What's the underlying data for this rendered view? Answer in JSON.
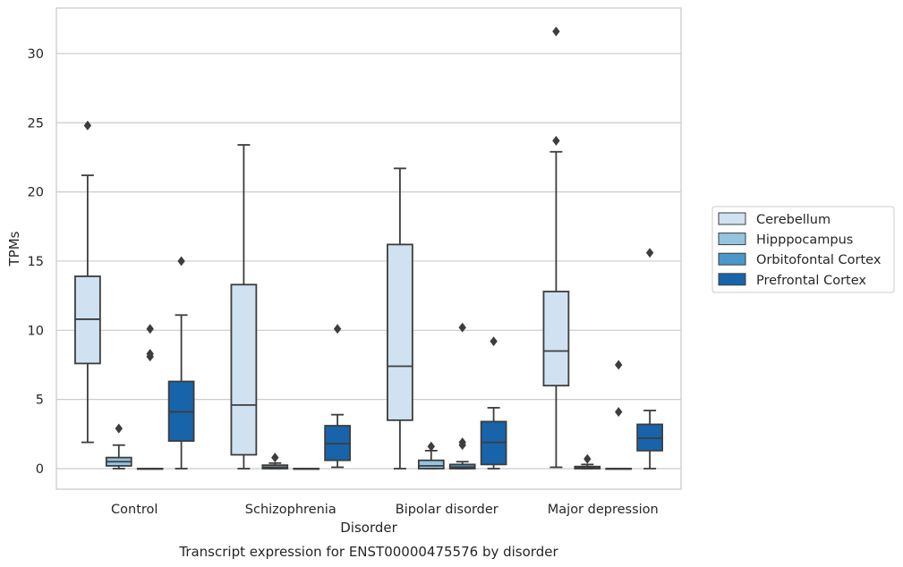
{
  "chart_data": {
    "type": "box",
    "title": "",
    "xlabel": "Disorder",
    "ylabel": "TPMs",
    "caption": "Transcript expression for ENST00000475576 by disorder",
    "categories": [
      "Control",
      "Schizophrenia",
      "Bipolar disorder",
      "Major depression"
    ],
    "ylim": [
      -1.5,
      32.5
    ],
    "yticks": [
      0,
      5,
      10,
      15,
      20,
      25,
      30
    ],
    "grid": "horizontal",
    "legend_position": "center-right",
    "colors": [
      "#d0e1f2",
      "#94c4df",
      "#4a98c9",
      "#1764ab"
    ],
    "edge_color": "#3d3d3d",
    "series": [
      {
        "name": "Cerebellum",
        "boxes": [
          {
            "q1": 7.6,
            "median": 10.8,
            "q3": 13.9,
            "whislo": 1.9,
            "whishi": 21.2,
            "fliers": [
              24.8
            ]
          },
          {
            "q1": 1.0,
            "median": 4.6,
            "q3": 13.3,
            "whislo": 0.0,
            "whishi": 23.4,
            "fliers": []
          },
          {
            "q1": 3.5,
            "median": 7.4,
            "q3": 16.2,
            "whislo": 0.0,
            "whishi": 21.7,
            "fliers": []
          },
          {
            "q1": 6.0,
            "median": 8.5,
            "q3": 12.8,
            "whislo": 0.1,
            "whishi": 22.9,
            "fliers": [
              23.7,
              31.6
            ]
          }
        ]
      },
      {
        "name": "Hipppocampus",
        "boxes": [
          {
            "q1": 0.2,
            "median": 0.5,
            "q3": 0.8,
            "whislo": 0.0,
            "whishi": 1.7,
            "fliers": [
              2.9
            ]
          },
          {
            "q1": 0.0,
            "median": 0.1,
            "q3": 0.25,
            "whislo": 0.0,
            "whishi": 0.4,
            "fliers": [
              0.8
            ]
          },
          {
            "q1": 0.0,
            "median": 0.2,
            "q3": 0.6,
            "whislo": 0.0,
            "whishi": 1.3,
            "fliers": [
              1.6
            ]
          },
          {
            "q1": 0.0,
            "median": 0.05,
            "q3": 0.15,
            "whislo": 0.0,
            "whishi": 0.3,
            "fliers": [
              0.7
            ]
          }
        ]
      },
      {
        "name": "Orbitofontal Cortex",
        "boxes": [
          {
            "q1": 0.0,
            "median": 0.0,
            "q3": 0.0,
            "whislo": 0.0,
            "whishi": 0.0,
            "fliers": [
              8.1,
              8.3,
              10.1
            ]
          },
          {
            "q1": 0.0,
            "median": 0.0,
            "q3": 0.0,
            "whislo": 0.0,
            "whishi": 0.0,
            "fliers": []
          },
          {
            "q1": 0.0,
            "median": 0.1,
            "q3": 0.3,
            "whislo": 0.0,
            "whishi": 0.5,
            "fliers": [
              1.7,
              1.9,
              10.2
            ]
          },
          {
            "q1": 0.0,
            "median": 0.0,
            "q3": 0.0,
            "whislo": 0.0,
            "whishi": 0.0,
            "fliers": [
              4.1,
              7.5
            ]
          }
        ]
      },
      {
        "name": "Prefrontal Cortex",
        "boxes": [
          {
            "q1": 2.0,
            "median": 4.1,
            "q3": 6.3,
            "whislo": 0.0,
            "whishi": 11.1,
            "fliers": [
              15.0
            ]
          },
          {
            "q1": 0.6,
            "median": 1.8,
            "q3": 3.1,
            "whislo": 0.1,
            "whishi": 3.9,
            "fliers": [
              10.1
            ]
          },
          {
            "q1": 0.3,
            "median": 1.9,
            "q3": 3.4,
            "whislo": 0.0,
            "whishi": 4.4,
            "fliers": [
              9.2
            ]
          },
          {
            "q1": 1.3,
            "median": 2.2,
            "q3": 3.2,
            "whislo": 0.0,
            "whishi": 4.2,
            "fliers": [
              15.6
            ]
          }
        ]
      }
    ]
  }
}
